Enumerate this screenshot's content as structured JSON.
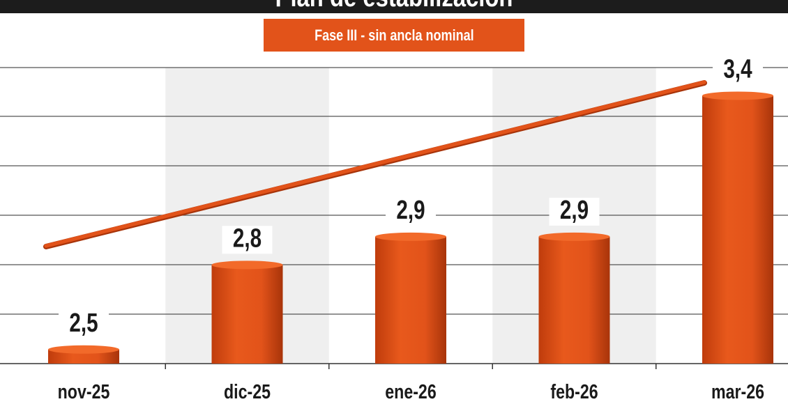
{
  "chart_data": {
    "type": "bar",
    "title": "Plan de estabilización",
    "subtitle": "Fase III - sin ancla nominal",
    "categories": [
      "nov-25",
      "dic-25",
      "ene-26",
      "feb-26",
      "mar-26"
    ],
    "values": [
      2.5,
      2.8,
      2.9,
      2.9,
      3.4
    ],
    "value_labels": [
      "2,5",
      "2,8",
      "2,9",
      "2,9",
      "3,4"
    ],
    "ylim": [
      2.45,
      3.5
    ],
    "trend_line": true,
    "grid": true,
    "colors": {
      "bar": "#e2531a",
      "trend": "#e2531a",
      "title_bar": "#1c1c1c",
      "band": "#efefef",
      "grid": "#555555"
    }
  }
}
